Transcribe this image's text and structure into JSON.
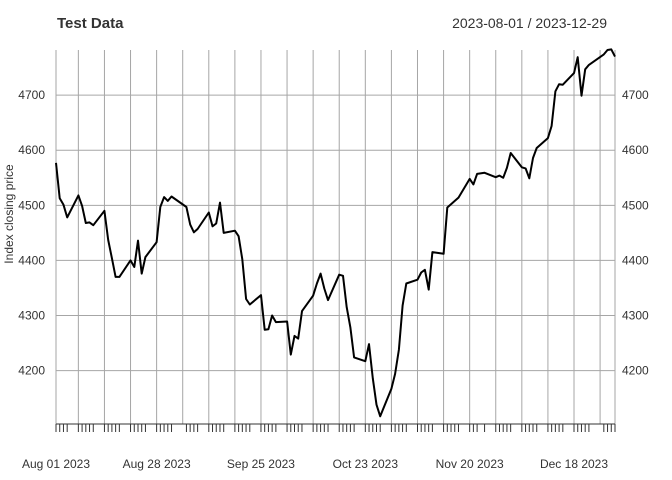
{
  "chart_data": {
    "type": "line",
    "title": "Test Data",
    "date_range": "2023-08-01 / 2023-12-29",
    "ylabel": "Index closing price",
    "xlim": [
      "2023-08-01",
      "2023-12-29"
    ],
    "ylim": [
      4103,
      4782
    ],
    "y_ticks": [
      4200,
      4300,
      4400,
      4500,
      4600,
      4700
    ],
    "x_ticks": [
      {
        "date": "2023-08-01",
        "label": "Aug 01 2023"
      },
      {
        "date": "2023-08-28",
        "label": "Aug 28 2023"
      },
      {
        "date": "2023-09-25",
        "label": "Sep 25 2023"
      },
      {
        "date": "2023-10-23",
        "label": "Oct 23 2023"
      },
      {
        "date": "2023-11-20",
        "label": "Nov 20 2023"
      },
      {
        "date": "2023-12-18",
        "label": "Dec 18 2023"
      }
    ],
    "grid": true,
    "line_color": "#000000",
    "series": [
      {
        "x": [
          "2023-08-01",
          "2023-08-02",
          "2023-08-03",
          "2023-08-04",
          "2023-08-07",
          "2023-08-08",
          "2023-08-09",
          "2023-08-10",
          "2023-08-11",
          "2023-08-14",
          "2023-08-15",
          "2023-08-16",
          "2023-08-17",
          "2023-08-18",
          "2023-08-21",
          "2023-08-22",
          "2023-08-23",
          "2023-08-24",
          "2023-08-25",
          "2023-08-28",
          "2023-08-29",
          "2023-08-30",
          "2023-08-31",
          "2023-09-01",
          "2023-09-05",
          "2023-09-06",
          "2023-09-07",
          "2023-09-08",
          "2023-09-11",
          "2023-09-12",
          "2023-09-13",
          "2023-09-14",
          "2023-09-15",
          "2023-09-18",
          "2023-09-19",
          "2023-09-20",
          "2023-09-21",
          "2023-09-22",
          "2023-09-25",
          "2023-09-26",
          "2023-09-27",
          "2023-09-28",
          "2023-09-29",
          "2023-10-02",
          "2023-10-03",
          "2023-10-04",
          "2023-10-05",
          "2023-10-06",
          "2023-10-09",
          "2023-10-10",
          "2023-10-11",
          "2023-10-12",
          "2023-10-13",
          "2023-10-16",
          "2023-10-17",
          "2023-10-18",
          "2023-10-19",
          "2023-10-20",
          "2023-10-23",
          "2023-10-24",
          "2023-10-25",
          "2023-10-26",
          "2023-10-27",
          "2023-10-30",
          "2023-10-31",
          "2023-11-01",
          "2023-11-02",
          "2023-11-03",
          "2023-11-06",
          "2023-11-07",
          "2023-11-08",
          "2023-11-09",
          "2023-11-10",
          "2023-11-13",
          "2023-11-14",
          "2023-11-15",
          "2023-11-16",
          "2023-11-17",
          "2023-11-20",
          "2023-11-21",
          "2023-11-22",
          "2023-11-24",
          "2023-11-27",
          "2023-11-28",
          "2023-11-29",
          "2023-11-30",
          "2023-12-01",
          "2023-12-04",
          "2023-12-05",
          "2023-12-06",
          "2023-12-07",
          "2023-12-08",
          "2023-12-11",
          "2023-12-12",
          "2023-12-13",
          "2023-12-14",
          "2023-12-15",
          "2023-12-18",
          "2023-12-19",
          "2023-12-20",
          "2023-12-21",
          "2023-12-22",
          "2023-12-26",
          "2023-12-27",
          "2023-12-28",
          "2023-12-29"
        ],
        "y": [
          4577,
          4513,
          4501,
          4478,
          4518,
          4499,
          4468,
          4469,
          4464,
          4490,
          4437,
          4404,
          4370,
          4370,
          4400,
          4388,
          4436,
          4376,
          4406,
          4433,
          4497,
          4515,
          4508,
          4516,
          4497,
          4465,
          4451,
          4457,
          4487,
          4462,
          4467,
          4505,
          4450,
          4454,
          4444,
          4402,
          4330,
          4320,
          4337,
          4274,
          4275,
          4300,
          4288,
          4289,
          4229,
          4263,
          4258,
          4308,
          4336,
          4358,
          4376,
          4349,
          4328,
          4374,
          4372,
          4315,
          4278,
          4224,
          4217,
          4248,
          4186,
          4138,
          4117,
          4167,
          4194,
          4238,
          4318,
          4358,
          4365,
          4378,
          4383,
          4347,
          4415,
          4412,
          4496,
          4502,
          4508,
          4514,
          4548,
          4538,
          4557,
          4559,
          4551,
          4554,
          4550,
          4568,
          4595,
          4569,
          4567,
          4549,
          4586,
          4604,
          4622,
          4644,
          4707,
          4720,
          4719,
          4740,
          4769,
          4699,
          4747,
          4755,
          4774,
          4782,
          4783,
          4770
        ]
      }
    ]
  }
}
